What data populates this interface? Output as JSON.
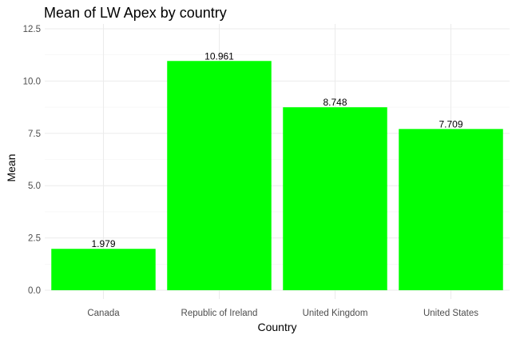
{
  "chart_data": {
    "type": "bar",
    "title": "Mean of LW Apex by country",
    "xlabel": "Country",
    "ylabel": "Mean",
    "categories": [
      "Canada",
      "Republic of Ireland",
      "United Kingdom",
      "United States"
    ],
    "values": [
      1.979,
      10.961,
      8.748,
      7.709
    ],
    "data_labels": [
      "1.979",
      "10.961",
      "8.748",
      "7.709"
    ],
    "ylim": [
      0,
      12.5
    ],
    "yticks": [
      0,
      2.5,
      5,
      7.5,
      10,
      12.5
    ],
    "ytick_labels": [
      "0.0",
      "2.5",
      "5.0",
      "7.5",
      "10.0",
      "12.5"
    ],
    "bar_color": "#00ff00",
    "grid": true,
    "legend": "none"
  }
}
